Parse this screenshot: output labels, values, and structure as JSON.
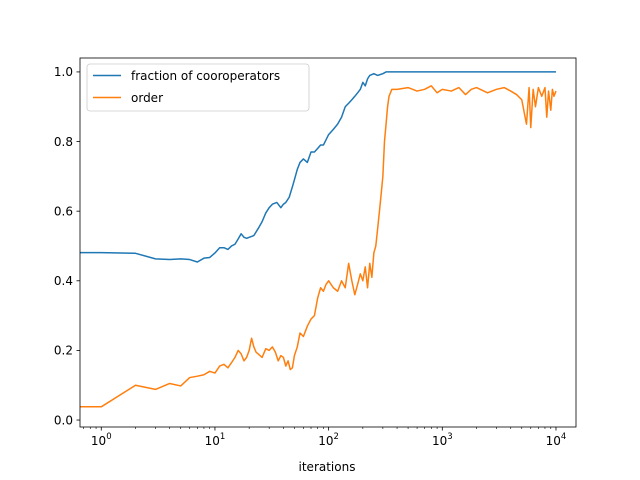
{
  "chart_data": {
    "type": "line",
    "title": "",
    "xlabel": "iterations",
    "ylabel": "",
    "xscale": "log",
    "xlim": [
      0.65,
      15000
    ],
    "ylim": [
      -0.02,
      1.04
    ],
    "grid": false,
    "legend_placement": "top-left",
    "x_ticks": [
      {
        "value": 1,
        "base": "10",
        "exp": "0"
      },
      {
        "value": 10,
        "base": "10",
        "exp": "1"
      },
      {
        "value": 100,
        "base": "10",
        "exp": "2"
      },
      {
        "value": 1000,
        "base": "10",
        "exp": "3"
      },
      {
        "value": 10000,
        "base": "10",
        "exp": "4"
      }
    ],
    "y_ticks": [
      {
        "value": 0.0,
        "label": "0.0"
      },
      {
        "value": 0.2,
        "label": "0.2"
      },
      {
        "value": 0.4,
        "label": "0.4"
      },
      {
        "value": 0.6,
        "label": "0.6"
      },
      {
        "value": 0.8,
        "label": "0.8"
      },
      {
        "value": 1.0,
        "label": "1.0"
      }
    ],
    "series": [
      {
        "name": "fraction of cooroperators",
        "color": "#1f77b4",
        "points": [
          [
            0.65,
            0.481
          ],
          [
            1,
            0.481
          ],
          [
            2,
            0.479
          ],
          [
            3,
            0.463
          ],
          [
            4,
            0.461
          ],
          [
            5,
            0.463
          ],
          [
            6,
            0.461
          ],
          [
            7,
            0.454
          ],
          [
            8,
            0.465
          ],
          [
            9,
            0.467
          ],
          [
            10,
            0.48
          ],
          [
            11,
            0.495
          ],
          [
            12,
            0.495
          ],
          [
            13,
            0.49
          ],
          [
            14,
            0.5
          ],
          [
            15,
            0.505
          ],
          [
            16,
            0.52
          ],
          [
            17,
            0.535
          ],
          [
            18,
            0.525
          ],
          [
            19,
            0.522
          ],
          [
            20,
            0.525
          ],
          [
            22,
            0.53
          ],
          [
            24,
            0.55
          ],
          [
            26,
            0.57
          ],
          [
            28,
            0.595
          ],
          [
            30,
            0.61
          ],
          [
            32,
            0.62
          ],
          [
            35,
            0.625
          ],
          [
            38,
            0.61
          ],
          [
            40,
            0.62
          ],
          [
            42,
            0.625
          ],
          [
            45,
            0.64
          ],
          [
            48,
            0.67
          ],
          [
            50,
            0.69
          ],
          [
            53,
            0.72
          ],
          [
            56,
            0.74
          ],
          [
            60,
            0.75
          ],
          [
            65,
            0.74
          ],
          [
            70,
            0.77
          ],
          [
            75,
            0.77
          ],
          [
            80,
            0.78
          ],
          [
            85,
            0.79
          ],
          [
            90,
            0.79
          ],
          [
            100,
            0.82
          ],
          [
            110,
            0.835
          ],
          [
            120,
            0.85
          ],
          [
            130,
            0.87
          ],
          [
            140,
            0.9
          ],
          [
            150,
            0.91
          ],
          [
            160,
            0.92
          ],
          [
            170,
            0.93
          ],
          [
            180,
            0.94
          ],
          [
            190,
            0.95
          ],
          [
            200,
            0.97
          ],
          [
            210,
            0.96
          ],
          [
            220,
            0.98
          ],
          [
            230,
            0.99
          ],
          [
            250,
            0.995
          ],
          [
            270,
            0.99
          ],
          [
            300,
            0.995
          ],
          [
            320,
            1.0
          ],
          [
            500,
            1.0
          ],
          [
            1000,
            1.0
          ],
          [
            3000,
            1.0
          ],
          [
            10000,
            1.0
          ]
        ]
      },
      {
        "name": "order",
        "color": "#ff7f0e",
        "points": [
          [
            0.65,
            0.038
          ],
          [
            1,
            0.038
          ],
          [
            2,
            0.1
          ],
          [
            3,
            0.088
          ],
          [
            4,
            0.105
          ],
          [
            5,
            0.098
          ],
          [
            6,
            0.122
          ],
          [
            7,
            0.126
          ],
          [
            8,
            0.13
          ],
          [
            9,
            0.14
          ],
          [
            10,
            0.135
          ],
          [
            11,
            0.155
          ],
          [
            12,
            0.16
          ],
          [
            13,
            0.15
          ],
          [
            14,
            0.165
          ],
          [
            15,
            0.18
          ],
          [
            16,
            0.2
          ],
          [
            17,
            0.19
          ],
          [
            18,
            0.17
          ],
          [
            19,
            0.18
          ],
          [
            20,
            0.2
          ],
          [
            21,
            0.235
          ],
          [
            22,
            0.21
          ],
          [
            23,
            0.195
          ],
          [
            24,
            0.19
          ],
          [
            26,
            0.18
          ],
          [
            28,
            0.205
          ],
          [
            30,
            0.2
          ],
          [
            32,
            0.21
          ],
          [
            34,
            0.195
          ],
          [
            36,
            0.17
          ],
          [
            38,
            0.185
          ],
          [
            40,
            0.18
          ],
          [
            42,
            0.155
          ],
          [
            44,
            0.17
          ],
          [
            46,
            0.145
          ],
          [
            48,
            0.15
          ],
          [
            50,
            0.185
          ],
          [
            53,
            0.21
          ],
          [
            56,
            0.25
          ],
          [
            60,
            0.24
          ],
          [
            65,
            0.27
          ],
          [
            70,
            0.29
          ],
          [
            75,
            0.3
          ],
          [
            80,
            0.35
          ],
          [
            85,
            0.38
          ],
          [
            90,
            0.37
          ],
          [
            95,
            0.39
          ],
          [
            100,
            0.4
          ],
          [
            110,
            0.38
          ],
          [
            120,
            0.37
          ],
          [
            130,
            0.4
          ],
          [
            140,
            0.38
          ],
          [
            150,
            0.45
          ],
          [
            160,
            0.4
          ],
          [
            170,
            0.36
          ],
          [
            180,
            0.39
          ],
          [
            190,
            0.42
          ],
          [
            200,
            0.4
          ],
          [
            210,
            0.44
          ],
          [
            220,
            0.38
          ],
          [
            230,
            0.45
          ],
          [
            240,
            0.41
          ],
          [
            250,
            0.48
          ],
          [
            260,
            0.5
          ],
          [
            270,
            0.55
          ],
          [
            280,
            0.6
          ],
          [
            290,
            0.65
          ],
          [
            300,
            0.7
          ],
          [
            310,
            0.8
          ],
          [
            320,
            0.85
          ],
          [
            330,
            0.9
          ],
          [
            340,
            0.93
          ],
          [
            360,
            0.95
          ],
          [
            400,
            0.95
          ],
          [
            500,
            0.955
          ],
          [
            600,
            0.945
          ],
          [
            700,
            0.95
          ],
          [
            800,
            0.96
          ],
          [
            900,
            0.94
          ],
          [
            1000,
            0.95
          ],
          [
            1200,
            0.945
          ],
          [
            1400,
            0.955
          ],
          [
            1600,
            0.935
          ],
          [
            1800,
            0.95
          ],
          [
            2000,
            0.955
          ],
          [
            2500,
            0.94
          ],
          [
            3000,
            0.95
          ],
          [
            3500,
            0.955
          ],
          [
            4000,
            0.945
          ],
          [
            4500,
            0.935
          ],
          [
            5000,
            0.92
          ],
          [
            5500,
            0.85
          ],
          [
            5800,
            0.955
          ],
          [
            6000,
            0.84
          ],
          [
            6300,
            0.95
          ],
          [
            6600,
            0.9
          ],
          [
            7000,
            0.955
          ],
          [
            7500,
            0.93
          ],
          [
            8000,
            0.955
          ],
          [
            8300,
            0.87
          ],
          [
            8600,
            0.945
          ],
          [
            9000,
            0.89
          ],
          [
            9300,
            0.95
          ],
          [
            9600,
            0.93
          ],
          [
            10000,
            0.945
          ]
        ]
      }
    ]
  }
}
